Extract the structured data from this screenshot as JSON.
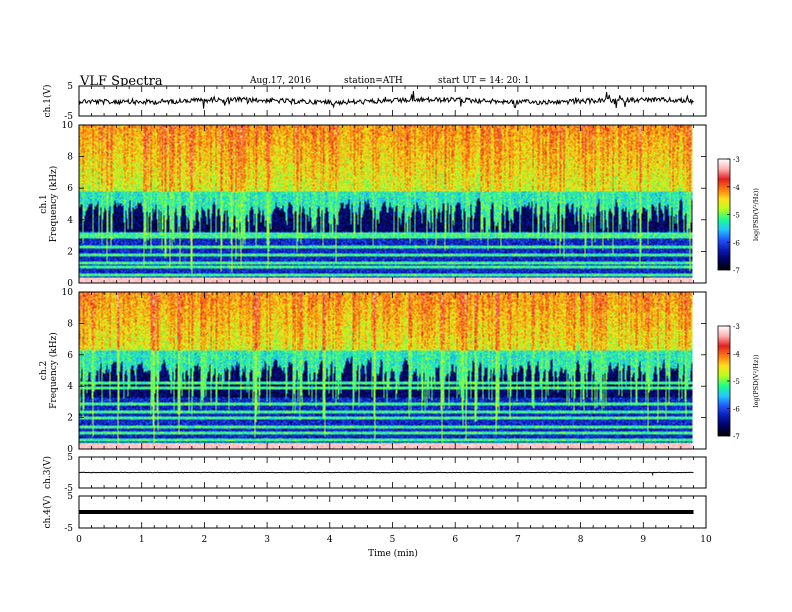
{
  "header": {
    "title": "VLF Spectra",
    "date": "Aug.17, 2016",
    "station": "station=ATH",
    "start": "start UT = 14: 20: 1"
  },
  "colorbar": {
    "label": "log(PSD(V²/Hz))",
    "ticks": [
      "-3",
      "-4",
      "-5",
      "-6",
      "-7"
    ],
    "colors": [
      "#000000",
      "#000060",
      "#0a1ab4",
      "#1f55ff",
      "#24c6ff",
      "#19ff8c",
      "#b4ff1e",
      "#ffe01a",
      "#ff7a10",
      "#e02020",
      "#ffb0b0",
      "#ffffff"
    ]
  },
  "chart_data": [
    {
      "type": "line",
      "name": "ch.1 waveform",
      "ylabel": "ch.1(V)",
      "ylim": [
        -5,
        5
      ],
      "yticks": [
        "5",
        "-5"
      ],
      "xlim": [
        0,
        10
      ],
      "mean_level": 0,
      "data_end_min": 9.8,
      "grid": false
    },
    {
      "type": "heatmap",
      "name": "ch.1 spectrogram",
      "ylabel_channel": "ch.1",
      "ylabel": "Frequency (kHz)",
      "ylim": [
        0,
        10
      ],
      "yticks": [
        "0",
        "2",
        "4",
        "6",
        "8",
        "10"
      ],
      "xlim": [
        0,
        10
      ],
      "data_end_min": 9.8,
      "zlim": [
        -7,
        -3
      ],
      "zlabel": "log(PSD(V²/Hz))",
      "upper_band_khz": [
        6,
        10
      ],
      "upper_band_log_psd": -4.7,
      "transition_khz": 5.8,
      "lower_band_log_psd": -6.6,
      "narrowband_lines_khz": [
        0.2,
        0.5,
        1.0,
        1.3,
        1.8,
        2.3,
        2.9,
        3.1
      ]
    },
    {
      "type": "heatmap",
      "name": "ch.2 spectrogram",
      "ylabel_channel": "ch.2",
      "ylabel": "Frequency (kHz)",
      "ylim": [
        0,
        10
      ],
      "yticks": [
        "0",
        "2",
        "4",
        "6",
        "8",
        "10"
      ],
      "xlim": [
        0,
        10
      ],
      "data_end_min": 9.8,
      "zlim": [
        -7,
        -3
      ],
      "zlabel": "log(PSD(V²/Hz))",
      "upper_band_khz": [
        6,
        10
      ],
      "upper_band_log_psd": -4.7,
      "transition_khz": 6.3,
      "lower_band_log_psd": -6.6,
      "narrowband_lines_khz": [
        0.3,
        0.6,
        1.0,
        1.4,
        2.0,
        2.4,
        2.9,
        3.9,
        4.2
      ]
    },
    {
      "type": "line",
      "name": "ch.3 waveform",
      "ylabel": "ch.3(V)",
      "ylim": [
        -5,
        5
      ],
      "yticks": [
        "5",
        "-5"
      ],
      "xlim": [
        0,
        10
      ],
      "mean_level": 0,
      "data_end_min": 9.8,
      "grid": false
    },
    {
      "type": "line",
      "name": "ch.4 waveform",
      "ylabel": "ch.4(V)",
      "ylim": [
        -5,
        5
      ],
      "yticks": [
        "5",
        "-5"
      ],
      "xlim": [
        0,
        10
      ],
      "mean_level": 0,
      "data_end_min": 9.8,
      "xlabel": "Time (min)",
      "xticks": [
        "0",
        "1",
        "2",
        "3",
        "4",
        "5",
        "6",
        "7",
        "8",
        "9",
        "10"
      ],
      "grid": false
    }
  ]
}
